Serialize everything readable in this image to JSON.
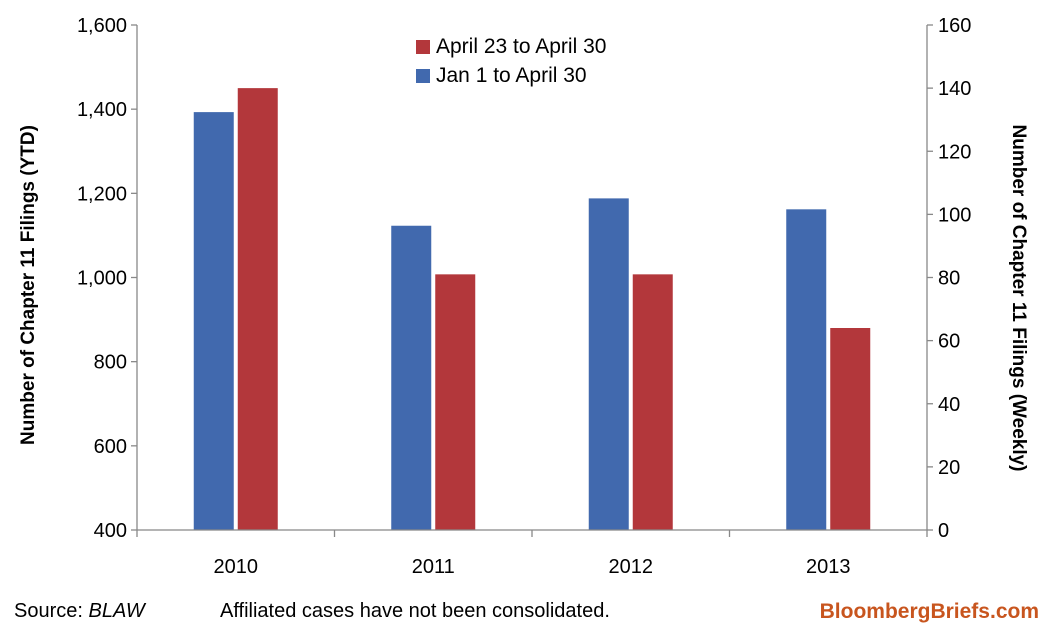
{
  "chart_data": {
    "type": "bar",
    "categories": [
      "2010",
      "2011",
      "2012",
      "2013"
    ],
    "series": [
      {
        "name": "Jan 1 to April 30",
        "axis": "left",
        "color": "#4169ae",
        "values": [
          1393,
          1123,
          1188,
          1162
        ]
      },
      {
        "name": "April 23 to April 30",
        "axis": "right",
        "color": "#b3373b",
        "values": [
          140,
          81,
          81,
          64
        ]
      }
    ],
    "ylabel_left": "Number of Chapter 11 Filings  (YTD)",
    "ylabel_right": "Number of Chapter 11 Filings (Weekly)",
    "ylim_left": [
      400,
      1600
    ],
    "ylim_right": [
      0,
      160
    ],
    "yticks_left": [
      400,
      600,
      800,
      1000,
      1200,
      1400,
      1600
    ],
    "yticks_left_labels": [
      "400",
      "600",
      "800",
      "1,000",
      "1,200",
      "1,400",
      "1,600"
    ],
    "yticks_right": [
      0,
      20,
      40,
      60,
      80,
      100,
      120,
      140,
      160
    ],
    "yticks_right_labels": [
      "0",
      "20",
      "40",
      "60",
      "80",
      "100",
      "120",
      "140",
      "160"
    ],
    "grid": false,
    "legend_position": "top-center",
    "legend_order": [
      "April 23 to April 30",
      "Jan 1 to April 30"
    ]
  },
  "footer": {
    "source_label": "Source: ",
    "source_name": "BLAW",
    "note": "Affiliated cases have not been consolidated.",
    "brand": "BloombergBriefs.com"
  },
  "colors": {
    "brand_text": "#c8551e",
    "axis": "#888888"
  }
}
